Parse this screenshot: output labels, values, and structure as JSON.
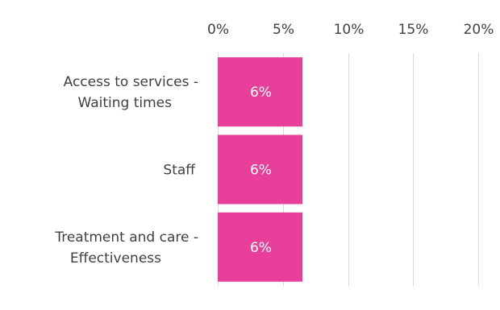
{
  "chart_data": {
    "type": "bar",
    "orientation": "horizontal",
    "categories": [
      [
        "Access to services -",
        "Waiting times"
      ],
      [
        "Staff"
      ],
      [
        "Treatment and care -",
        "Effectiveness"
      ]
    ],
    "values": [
      6.5,
      6.5,
      6.5
    ],
    "data_labels": [
      "6%",
      "6%",
      "6%"
    ],
    "xlim": [
      0,
      20
    ],
    "xticks": [
      0,
      5,
      10,
      15,
      20
    ],
    "xtick_labels": [
      "0%",
      "5%",
      "10%",
      "15%",
      "20%"
    ],
    "axis_position": "top",
    "grid": true,
    "bar_color": "#e8409a",
    "title": "",
    "xlabel": "",
    "ylabel": ""
  }
}
